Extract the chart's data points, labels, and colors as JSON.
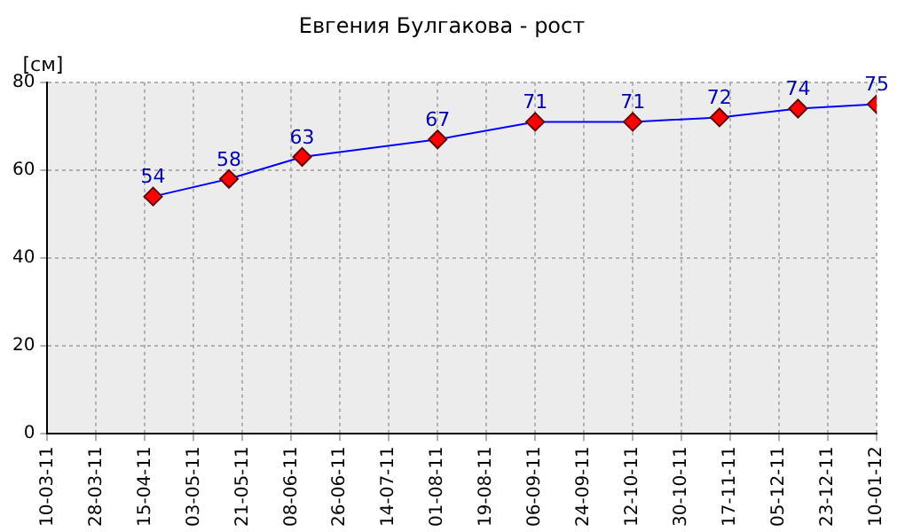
{
  "chart_data": {
    "type": "line",
    "title": "Евгения Булгакова - рост",
    "ylabel": "[см]",
    "x": [
      "2011-04-18",
      "2011-05-16",
      "2011-06-12",
      "2011-08-01",
      "2011-09-06",
      "2011-10-12",
      "2011-11-13",
      "2011-12-12",
      "2012-01-10"
    ],
    "series": [
      {
        "color": "#0000ff",
        "values": [
          54,
          58,
          63,
          67,
          71,
          71,
          72,
          74,
          75
        ]
      }
    ],
    "xlim": [
      "2011-03-10",
      "2012-01-10"
    ],
    "xticks": [
      {
        "value": "2011-03-10",
        "label": "10-03-11"
      },
      {
        "value": "2011-03-28",
        "label": "28-03-11"
      },
      {
        "value": "2011-04-15",
        "label": "15-04-11"
      },
      {
        "value": "2011-05-03",
        "label": "03-05-11"
      },
      {
        "value": "2011-05-21",
        "label": "21-05-11"
      },
      {
        "value": "2011-06-08",
        "label": "08-06-11"
      },
      {
        "value": "2011-06-26",
        "label": "26-06-11"
      },
      {
        "value": "2011-07-14",
        "label": "14-07-11"
      },
      {
        "value": "2011-08-01",
        "label": "01-08-11"
      },
      {
        "value": "2011-08-19",
        "label": "19-08-11"
      },
      {
        "value": "2011-09-06",
        "label": "06-09-11"
      },
      {
        "value": "2011-09-24",
        "label": "24-09-11"
      },
      {
        "value": "2011-10-12",
        "label": "12-10-11"
      },
      {
        "value": "2011-10-30",
        "label": "30-10-11"
      },
      {
        "value": "2011-11-17",
        "label": "17-11-11"
      },
      {
        "value": "2011-12-05",
        "label": "05-12-11"
      },
      {
        "value": "2011-12-23",
        "label": "23-12-11"
      },
      {
        "value": "2012-01-10",
        "label": "10-01-12"
      }
    ],
    "ylim": [
      0,
      80
    ],
    "yticks": [
      0,
      20,
      40,
      60,
      80
    ],
    "grid": true,
    "marker": "diamond",
    "line_style": "solid",
    "data_labels": true,
    "legend": false
  }
}
